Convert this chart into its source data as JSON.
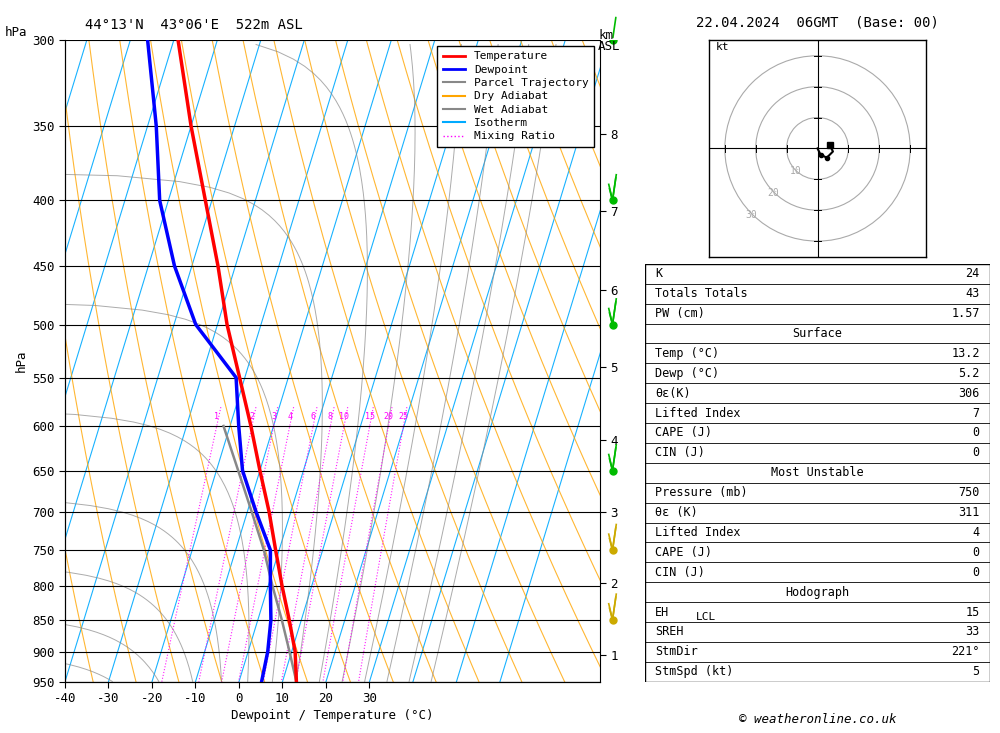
{
  "title_left": "44°13'N  43°06'E  522m ASL",
  "title_right": "22.04.2024  06GMT  (Base: 00)",
  "xlabel": "Dewpoint / Temperature (°C)",
  "ylabel_left": "hPa",
  "pressure_ticks": [
    300,
    350,
    400,
    450,
    500,
    550,
    600,
    650,
    700,
    750,
    800,
    850,
    900,
    950
  ],
  "temp_min": -40,
  "temp_max": 38,
  "P_MIN": 300,
  "P_MAX": 950,
  "skew_amount": 45.0,
  "temp_profile_p": [
    950,
    900,
    850,
    800,
    750,
    700,
    650,
    600,
    550,
    500,
    450,
    400,
    350,
    300
  ],
  "temp_profile_t": [
    13.2,
    10.8,
    7.2,
    3.2,
    -0.8,
    -5.0,
    -10.0,
    -15.2,
    -21.2,
    -27.8,
    -34.0,
    -41.5,
    -50.0,
    -59.0
  ],
  "dewp_profile_p": [
    950,
    900,
    850,
    800,
    750,
    700,
    650,
    600,
    550,
    500,
    450,
    400,
    350,
    300
  ],
  "dewp_profile_t": [
    5.2,
    4.5,
    3.0,
    0.5,
    -2.0,
    -8.0,
    -14.0,
    -18.0,
    -22.0,
    -35.0,
    -44.0,
    -52.0,
    -58.0,
    -66.0
  ],
  "parcel_profile_p": [
    950,
    900,
    850,
    800,
    750,
    700,
    650,
    600
  ],
  "parcel_profile_t": [
    13.2,
    9.5,
    5.5,
    1.0,
    -3.5,
    -9.0,
    -15.0,
    -21.5
  ],
  "mixing_ratio_values": [
    1,
    2,
    3,
    4,
    6,
    8,
    10,
    15,
    20,
    25
  ],
  "km_asl_ticks": [
    1,
    2,
    3,
    4,
    5,
    6,
    7,
    8
  ],
  "km_asl_pressures": [
    905,
    795,
    700,
    615,
    540,
    470,
    408,
    355
  ],
  "lcl_pressure": 845,
  "stats": {
    "K": 24,
    "Totals_Totals": 43,
    "PW_cm": 1.57,
    "Surface_Temp_C": 13.2,
    "Surface_Dewp_C": 5.2,
    "theta_e_K": 306,
    "Lifted_Index": 7,
    "CAPE_J": 0,
    "CIN_J": 0,
    "MU_Pressure_mb": 750,
    "MU_theta_e_K": 311,
    "MU_Lifted_Index": 4,
    "MU_CAPE_J": 0,
    "MU_CIN_J": 0,
    "EH": 15,
    "SREH": 33,
    "StmDir_deg": 221,
    "StmSpd_kt": 5
  },
  "color_temp": "#ff0000",
  "color_dewp": "#0000ff",
  "color_parcel": "#888888",
  "color_dry_adiabat": "#ffa500",
  "color_wet_adiabat": "#888888",
  "color_isotherm": "#00aaff",
  "color_mixing": "#ff00ff",
  "color_green_wind": "#00bb00",
  "color_yellow_wind": "#ccaa00",
  "background_color": "#ffffff",
  "wind_barbs_green_p": [
    300,
    400,
    500,
    650
  ],
  "wind_barbs_yellow_p": [
    750,
    850
  ],
  "hodo_circles": [
    10,
    20,
    30
  ],
  "copyright": "© weatheronline.co.uk"
}
